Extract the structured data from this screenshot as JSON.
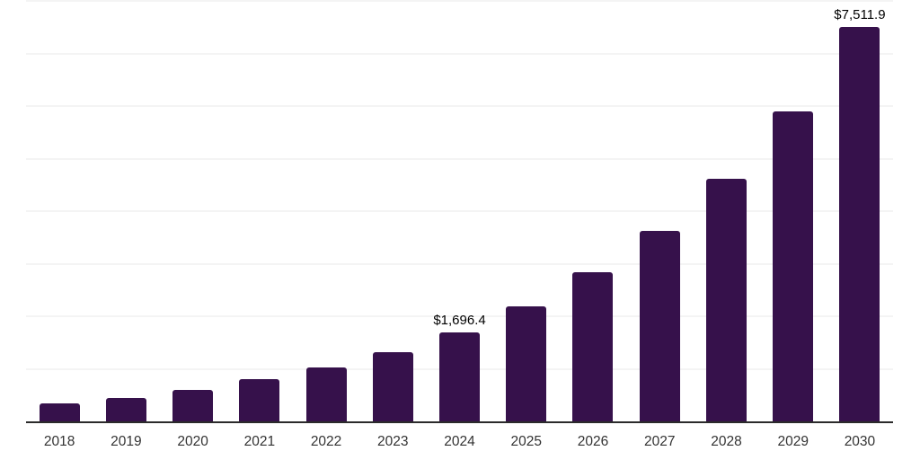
{
  "chart_data": {
    "type": "bar",
    "title": "",
    "xlabel": "",
    "ylabel": "",
    "categories": [
      "2018",
      "2019",
      "2020",
      "2021",
      "2022",
      "2023",
      "2024",
      "2025",
      "2026",
      "2027",
      "2028",
      "2029",
      "2030"
    ],
    "values": [
      340,
      442,
      595,
      799,
      1020,
      1309,
      1696.4,
      2192,
      2838,
      3620,
      4623,
      5897,
      7511.9
    ],
    "annotations": [
      {
        "category": "2024",
        "text": "$1,696.4"
      },
      {
        "category": "2030",
        "text": "$7,511.9"
      }
    ],
    "ylim": [
      0,
      8000
    ],
    "gridline_step": 1000,
    "grid": true,
    "legend": false,
    "y_axis_labels_visible": false,
    "colors": {
      "bar": "#36114b",
      "gridline": "#f4f4f4",
      "axis_line": "#2b2b2b",
      "tick_label": "#333333",
      "data_label": "#000000",
      "background": "#ffffff"
    }
  }
}
